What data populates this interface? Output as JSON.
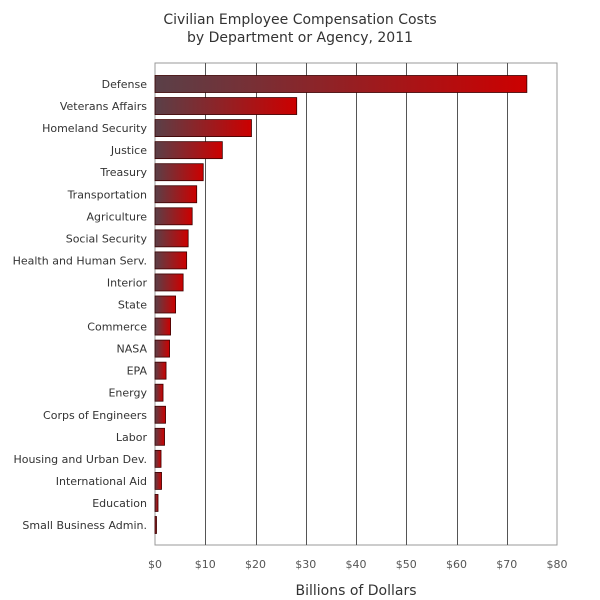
{
  "chart_data": {
    "type": "bar",
    "orientation": "horizontal",
    "title": "Civilian Employee Compensation Costs",
    "subtitle": "by Department or Agency, 2011",
    "xlabel": "Billions of Dollars",
    "ylabel": "",
    "xlim": [
      0,
      80
    ],
    "tick_values": [
      0,
      10,
      20,
      30,
      40,
      50,
      60,
      70,
      80
    ],
    "tick_labels": [
      "$0",
      "$10",
      "$20",
      "$30",
      "$40",
      "$50",
      "$60",
      "$70",
      "$80"
    ],
    "grid": true,
    "categories": [
      "Defense",
      "Veterans Affairs",
      "Homeland Security",
      "Justice",
      "Treasury",
      "Transportation",
      "Agriculture",
      "Social Security",
      "Health and Human Serv.",
      "Interior",
      "State",
      "Commerce",
      "NASA",
      "EPA",
      "Energy",
      "Corps of Engineers",
      "Labor",
      "Housing and Urban Dev.",
      "International Aid",
      "Education",
      "Small Business Admin."
    ],
    "values": [
      74,
      28.2,
      19.2,
      13.4,
      9.6,
      8.3,
      7.4,
      6.6,
      6.3,
      5.6,
      4.1,
      3.1,
      2.9,
      2.2,
      1.6,
      2.1,
      1.9,
      1.2,
      1.3,
      0.6,
      0.3
    ],
    "colors": {
      "bar_start": "#5a4048",
      "bar_end": "#cc0000",
      "bar_edge": "#3a0000",
      "grid": "#555555",
      "axis": "#999999"
    }
  }
}
